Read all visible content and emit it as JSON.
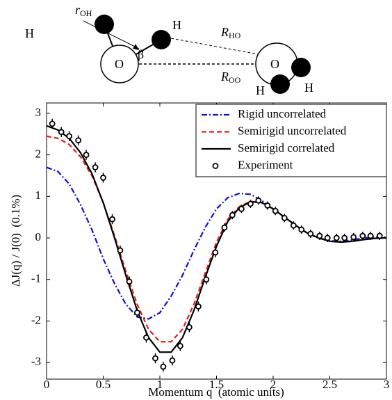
{
  "diagram": {
    "labels": [
      {
        "text": "H"
      },
      {
        "text": "r",
        "sub": "OH"
      },
      {
        "text": "H"
      },
      {
        "text": "β"
      },
      {
        "text": "R",
        "sub": "HO"
      },
      {
        "text": "O"
      },
      {
        "text": "R",
        "sub": "OO"
      },
      {
        "text": "O"
      },
      {
        "text": "H"
      },
      {
        "text": "H"
      }
    ]
  },
  "chart_data": {
    "type": "line",
    "xlabel": "Momentum q  (atomic units)",
    "ylabel": "ΔJ(q) / J(0)  (0.1%)",
    "xlim": [
      0,
      3
    ],
    "ylim": [
      -3.4,
      3.25
    ],
    "xticks": [
      0,
      0.5,
      1,
      1.5,
      2,
      2.5,
      3
    ],
    "yticks": [
      -3,
      -2,
      -1,
      0,
      1,
      2,
      3
    ],
    "legend": "upper right",
    "series": [
      {
        "name": "Rigid uncorrelated",
        "type": "line",
        "color": "#1010d0",
        "dash": "dashdot",
        "x": [
          0,
          0.1,
          0.2,
          0.3,
          0.4,
          0.5,
          0.6,
          0.7,
          0.8,
          0.9,
          1,
          1.1,
          1.2,
          1.3,
          1.4,
          1.5,
          1.6,
          1.7,
          1.8,
          1.9,
          2,
          2.1,
          2.2,
          2.3,
          2.4,
          2.5,
          2.6,
          2.7,
          2.8,
          2.9,
          3
        ],
        "values": [
          1.7,
          1.6,
          1.3,
          0.8,
          0.2,
          -0.5,
          -1.1,
          -1.6,
          -1.9,
          -1.95,
          -1.8,
          -1.4,
          -0.9,
          -0.3,
          0.25,
          0.7,
          0.97,
          1.07,
          1.05,
          0.9,
          0.7,
          0.5,
          0.3,
          0.12,
          0,
          -0.07,
          -0.08,
          -0.05,
          0,
          0.02,
          0.02
        ]
      },
      {
        "name": "Semirigid uncorrelated",
        "type": "line",
        "color": "#e02020",
        "dash": "dashed",
        "x": [
          0,
          0.1,
          0.2,
          0.3,
          0.4,
          0.5,
          0.6,
          0.7,
          0.8,
          0.9,
          1,
          1.1,
          1.2,
          1.3,
          1.4,
          1.5,
          1.6,
          1.7,
          1.8,
          1.9,
          2,
          2.1,
          2.2,
          2.3,
          2.4,
          2.5,
          2.6,
          2.7,
          2.8,
          2.9,
          3
        ],
        "values": [
          2.45,
          2.4,
          2.25,
          1.95,
          1.5,
          0.85,
          0.05,
          -0.8,
          -1.6,
          -2.2,
          -2.5,
          -2.5,
          -2.2,
          -1.6,
          -0.85,
          -0.1,
          0.45,
          0.75,
          0.88,
          0.85,
          0.7,
          0.5,
          0.3,
          0.12,
          0,
          -0.08,
          -0.1,
          -0.08,
          -0.04,
          -0.01,
          0
        ]
      },
      {
        "name": "Semirigid correlated",
        "type": "line",
        "color": "#000000",
        "dash": "solid",
        "x": [
          0,
          0.1,
          0.2,
          0.3,
          0.4,
          0.5,
          0.6,
          0.7,
          0.8,
          0.9,
          1,
          1.1,
          1.2,
          1.3,
          1.4,
          1.5,
          1.6,
          1.7,
          1.8,
          1.9,
          2,
          2.1,
          2.2,
          2.3,
          2.4,
          2.5,
          2.6,
          2.7,
          2.8,
          2.9,
          3
        ],
        "values": [
          2.7,
          2.6,
          2.4,
          2.05,
          1.55,
          0.85,
          0,
          -0.9,
          -1.75,
          -2.4,
          -2.75,
          -2.75,
          -2.4,
          -1.75,
          -0.95,
          -0.2,
          0.4,
          0.72,
          0.87,
          0.85,
          0.7,
          0.5,
          0.3,
          0.12,
          0,
          -0.08,
          -0.1,
          -0.08,
          -0.04,
          -0.01,
          0
        ]
      },
      {
        "name": "Experiment",
        "type": "scatter",
        "color": "#000000",
        "x": [
          0.05,
          0.13,
          0.2,
          0.28,
          0.35,
          0.43,
          0.5,
          0.58,
          0.65,
          0.73,
          0.8,
          0.88,
          0.96,
          1.03,
          1.11,
          1.18,
          1.26,
          1.34,
          1.41,
          1.49,
          1.57,
          1.64,
          1.72,
          1.8,
          1.87,
          1.95,
          2.02,
          2.1,
          2.18,
          2.25,
          2.33,
          2.41,
          2.48,
          2.56,
          2.63,
          2.71,
          2.79,
          2.86,
          2.94
        ],
        "values": [
          2.75,
          2.55,
          2.45,
          2.35,
          2.0,
          1.7,
          1.45,
          0.45,
          -0.3,
          -1.05,
          -1.8,
          -2.4,
          -2.9,
          -3.1,
          -2.95,
          -2.6,
          -2.15,
          -1.65,
          -1.0,
          -0.35,
          0.25,
          0.55,
          0.7,
          0.82,
          0.9,
          0.78,
          0.65,
          0.48,
          0.3,
          0.2,
          0.1,
          0.05,
          0,
          0,
          0,
          0.02,
          0.05,
          0.05,
          0.05
        ],
        "errors": [
          0.12,
          0.12,
          0.12,
          0.12,
          0.12,
          0.12,
          0.12,
          0.12,
          0.12,
          0.12,
          0.12,
          0.12,
          0.12,
          0.12,
          0.12,
          0.12,
          0.12,
          0.12,
          0.12,
          0.12,
          0.1,
          0.1,
          0.1,
          0.1,
          0.1,
          0.1,
          0.1,
          0.1,
          0.1,
          0.1,
          0.1,
          0.1,
          0.1,
          0.1,
          0.1,
          0.1,
          0.1,
          0.1,
          0.1
        ]
      }
    ]
  }
}
